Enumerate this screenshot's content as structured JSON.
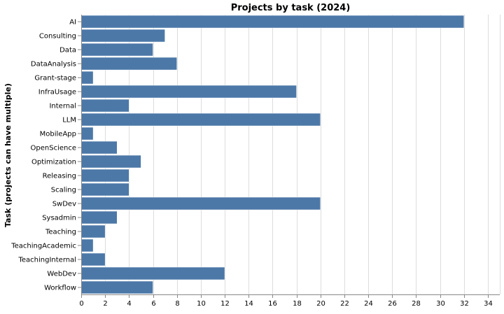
{
  "chart_data": {
    "type": "bar",
    "orientation": "horizontal",
    "title": "Projects by task (2024)",
    "xlabel": "",
    "ylabel": "Task (projects can have multiple)",
    "categories": [
      "AI",
      "Consulting",
      "Data",
      "DataAnalysis",
      "Grant-stage",
      "InfraUsage",
      "Internal",
      "LLM",
      "MobileApp",
      "OpenScience",
      "Optimization",
      "Releasing",
      "Scaling",
      "SwDev",
      "Sysadmin",
      "Teaching",
      "TeachingAcademic",
      "TeachingInternal",
      "WebDev",
      "Workflow"
    ],
    "values": [
      32,
      7,
      6,
      8,
      1,
      18,
      4,
      20,
      1,
      3,
      5,
      4,
      4,
      20,
      3,
      2,
      1,
      2,
      12,
      6
    ],
    "xlim": [
      0,
      35
    ],
    "xticks": [
      0,
      2,
      4,
      6,
      8,
      10,
      12,
      14,
      16,
      18,
      20,
      22,
      24,
      26,
      28,
      30,
      32,
      34
    ],
    "grid": true,
    "colors": {
      "bar": "#4c78a8",
      "grid": "#dddddd",
      "axis": "#888888"
    }
  }
}
